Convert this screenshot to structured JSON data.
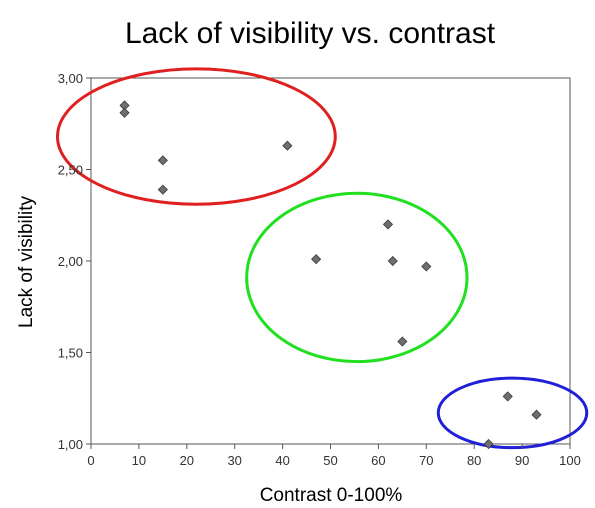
{
  "chart_data": {
    "type": "scatter",
    "title": "Lack of visibility vs. contrast",
    "xlabel": "Contrast 0-100%",
    "ylabel": "Lack of visibility",
    "xlim": [
      0,
      100
    ],
    "ylim": [
      1.0,
      3.0
    ],
    "x_ticks": [
      "0",
      "10",
      "20",
      "30",
      "40",
      "50",
      "60",
      "70",
      "80",
      "90",
      "100"
    ],
    "y_ticks": [
      "1,00",
      "1,50",
      "2,00",
      "2,50",
      "3,00"
    ],
    "grid": false,
    "marker_color": "#6e6e6e",
    "points": [
      {
        "x": 7,
        "y": 2.85
      },
      {
        "x": 7,
        "y": 2.81
      },
      {
        "x": 15,
        "y": 2.55
      },
      {
        "x": 15,
        "y": 2.39
      },
      {
        "x": 41,
        "y": 2.63
      },
      {
        "x": 47,
        "y": 2.01
      },
      {
        "x": 62,
        "y": 2.2
      },
      {
        "x": 63,
        "y": 2.0
      },
      {
        "x": 70,
        "y": 1.97
      },
      {
        "x": 65,
        "y": 1.56
      },
      {
        "x": 87,
        "y": 1.26
      },
      {
        "x": 93,
        "y": 1.16
      },
      {
        "x": 83,
        "y": 1.0
      }
    ],
    "annotations": [
      {
        "shape": "ellipse",
        "color": "#e02020",
        "cx": 22,
        "cy": 2.68,
        "rx": 29,
        "ry": 0.37
      },
      {
        "shape": "ellipse",
        "color": "#20e020",
        "cx": 55.5,
        "cy": 1.91,
        "rx": 23,
        "ry": 0.46
      },
      {
        "shape": "ellipse",
        "color": "#2020d8",
        "cx": 88,
        "cy": 1.17,
        "rx": 15.5,
        "ry": 0.19
      }
    ]
  }
}
